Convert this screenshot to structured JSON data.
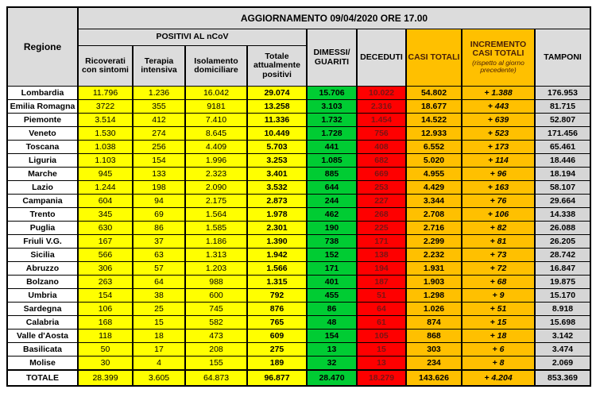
{
  "colors": {
    "yellow": "#FFFF00",
    "green": "#00CC33",
    "red": "#FE0000",
    "orange": "#FFC000",
    "gray_header": "#DCDCDC",
    "gray_tamponi": "#D6D6D6",
    "deceduti_text": "#7A1414",
    "orange_header_text": "#4A2008"
  },
  "chart_data": {
    "type": "table",
    "title": "AGGIORNAMENTO 09/04/2020 ORE 17.00",
    "column_groups": {
      "positivi": "POSITIVI AL nCoV"
    },
    "columns": [
      "Regione",
      "Ricoverati con sintomi",
      "Terapia intensiva",
      "Isolamento domiciliare",
      "Totale attualmente positivi",
      "DIMESSI/ GUARITI",
      "DECEDUTI",
      "CASI TOTALI",
      "INCREMENTO CASI  TOTALI",
      "TAMPONI"
    ],
    "incremento_note": "(rispetto al giorno precedente)",
    "rows": [
      [
        "Lombardia",
        "11.796",
        "1.236",
        "16.042",
        "29.074",
        "15.706",
        "10.022",
        "54.802",
        "+ 1.388",
        "176.953"
      ],
      [
        "Emilia Romagna",
        "3722",
        "355",
        "9181",
        "13.258",
        "3.103",
        "2.316",
        "18.677",
        "+ 443",
        "81.715"
      ],
      [
        "Piemonte",
        "3.514",
        "412",
        "7.410",
        "11.336",
        "1.732",
        "1.454",
        "14.522",
        "+ 639",
        "52.807"
      ],
      [
        "Veneto",
        "1.530",
        "274",
        "8.645",
        "10.449",
        "1.728",
        "756",
        "12.933",
        "+ 523",
        "171.456"
      ],
      [
        "Toscana",
        "1.038",
        "256",
        "4.409",
        "5.703",
        "441",
        "408",
        "6.552",
        "+ 173",
        "65.461"
      ],
      [
        "Liguria",
        "1.103",
        "154",
        "1.996",
        "3.253",
        "1.085",
        "682",
        "5.020",
        "+ 114",
        "18.446"
      ],
      [
        "Marche",
        "945",
        "133",
        "2.323",
        "3.401",
        "885",
        "669",
        "4.955",
        "+ 96",
        "18.194"
      ],
      [
        "Lazio",
        "1.244",
        "198",
        "2.090",
        "3.532",
        "644",
        "253",
        "4.429",
        "+ 163",
        "58.107"
      ],
      [
        "Campania",
        "604",
        "94",
        "2.175",
        "2.873",
        "244",
        "227",
        "3.344",
        "+ 76",
        "29.664"
      ],
      [
        "Trento",
        "345",
        "69",
        "1.564",
        "1.978",
        "462",
        "268",
        "2.708",
        "+ 106",
        "14.338"
      ],
      [
        "Puglia",
        "630",
        "86",
        "1.585",
        "2.301",
        "190",
        "225",
        "2.716",
        "+ 82",
        "26.088"
      ],
      [
        "Friuli V.G.",
        "167",
        "37",
        "1.186",
        "1.390",
        "738",
        "171",
        "2.299",
        "+ 81",
        "26.205"
      ],
      [
        "Sicilia",
        "566",
        "63",
        "1.313",
        "1.942",
        "152",
        "138",
        "2.232",
        "+ 73",
        "28.742"
      ],
      [
        "Abruzzo",
        "306",
        "57",
        "1.203",
        "1.566",
        "171",
        "194",
        "1.931",
        "+ 72",
        "16.847"
      ],
      [
        "Bolzano",
        "263",
        "64",
        "988",
        "1.315",
        "401",
        "187",
        "1.903",
        "+ 68",
        "19.875"
      ],
      [
        "Umbria",
        "154",
        "38",
        "600",
        "792",
        "455",
        "51",
        "1.298",
        "+ 9",
        "15.170"
      ],
      [
        "Sardegna",
        "106",
        "25",
        "745",
        "876",
        "86",
        "64",
        "1.026",
        "+ 51",
        "8.918"
      ],
      [
        "Calabria",
        "168",
        "15",
        "582",
        "765",
        "48",
        "61",
        "874",
        "+ 15",
        "15.698"
      ],
      [
        "Valle d'Aosta",
        "118",
        "18",
        "473",
        "609",
        "154",
        "105",
        "868",
        "+ 18",
        "3.142"
      ],
      [
        "Basilicata",
        "50",
        "17",
        "208",
        "275",
        "13",
        "15",
        "303",
        "+ 6",
        "3.474"
      ],
      [
        "Molise",
        "30",
        "4",
        "155",
        "189",
        "32",
        "13",
        "234",
        "+ 8",
        "2.069"
      ]
    ],
    "total_row": [
      "TOTALE",
      "28.399",
      "3.605",
      "64.873",
      "96.877",
      "28.470",
      "18.279",
      "143.626",
      "+ 4.204",
      "853.369"
    ]
  }
}
